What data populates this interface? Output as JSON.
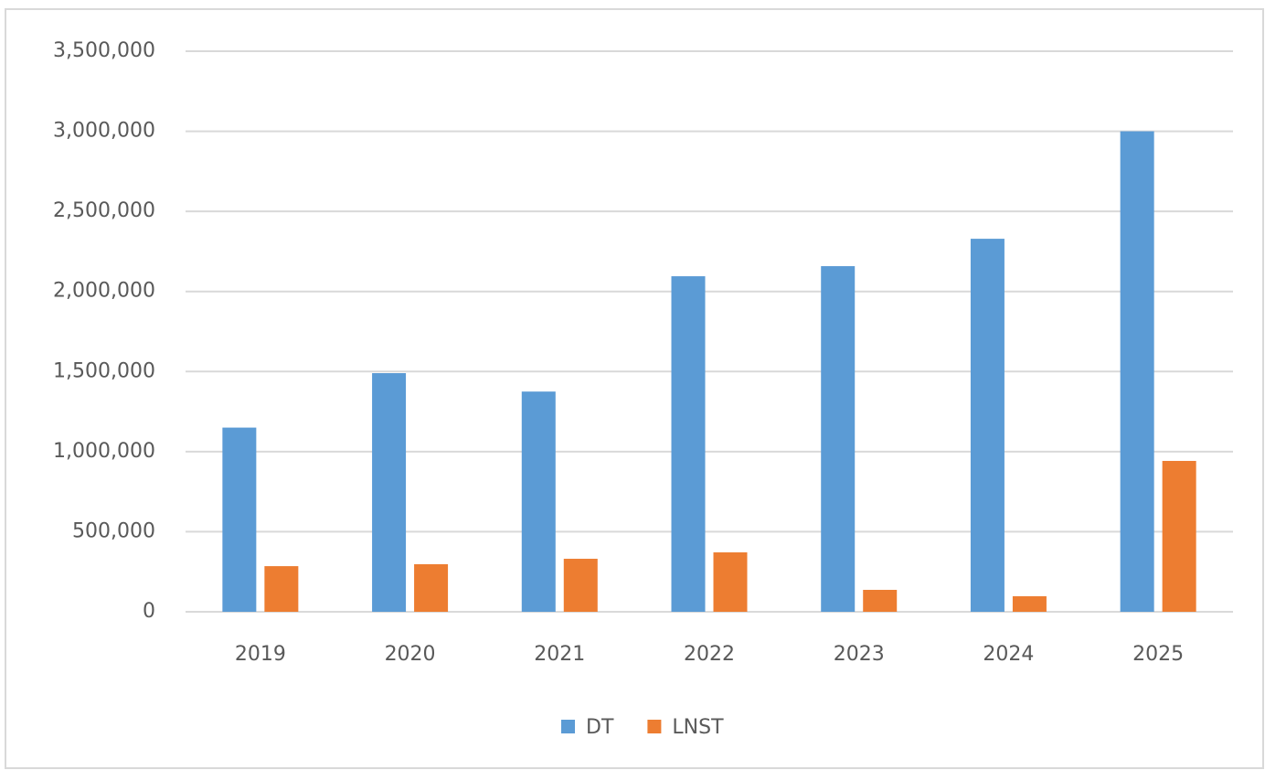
{
  "chart_data": {
    "type": "bar",
    "categories": [
      "2019",
      "2020",
      "2021",
      "2022",
      "2023",
      "2024",
      "2025"
    ],
    "series": [
      {
        "name": "DT",
        "color": "#5b9bd5",
        "values": [
          1150000,
          1490000,
          1375000,
          2095000,
          2158000,
          2329000,
          3000000
        ]
      },
      {
        "name": "LNST",
        "color": "#ed7d31",
        "values": [
          285000,
          297000,
          331000,
          371000,
          137000,
          97000,
          942000
        ]
      }
    ],
    "ylim": [
      0,
      3500000
    ],
    "yticks": [
      0,
      {
        "value": 500000,
        "label": "500,000"
      },
      {
        "value": 1000000,
        "label": "1,000,000"
      },
      {
        "value": 1500000,
        "label": "1,500,000"
      },
      {
        "value": 2000000,
        "label": "2,000,000"
      },
      {
        "value": 2500000,
        "label": "2,500,000"
      },
      {
        "value": 3000000,
        "label": "3,000,000"
      },
      {
        "value": 3500000,
        "label": "3,500,000"
      }
    ],
    "grid": true,
    "legend": "bottom"
  }
}
